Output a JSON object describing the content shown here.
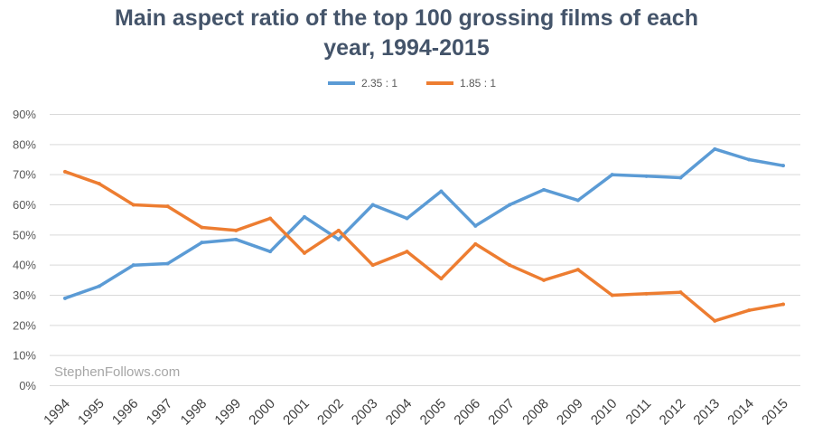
{
  "chart_data": {
    "type": "line",
    "title": "Main aspect ratio of the top 100 grossing films of each year, 1994-2015",
    "title_lines": [
      "Main aspect ratio of the top 100 grossing films of each",
      "year, 1994-2015"
    ],
    "xlabel": "",
    "ylabel": "",
    "categories": [
      "1994",
      "1995",
      "1996",
      "1997",
      "1998",
      "1999",
      "2000",
      "2001",
      "2002",
      "2003",
      "2004",
      "2005",
      "2006",
      "2007",
      "2008",
      "2009",
      "2010",
      "2011",
      "2012",
      "2013",
      "2014",
      "2015"
    ],
    "series": [
      {
        "name": "2.35 : 1",
        "color": "#5b9bd5",
        "values": [
          29,
          33,
          40,
          40.5,
          47.5,
          48.5,
          44.5,
          56,
          48.5,
          60,
          55.5,
          64.5,
          53,
          60,
          65,
          61.5,
          70,
          69.5,
          69,
          78.5,
          75,
          73
        ]
      },
      {
        "name": "1.85 : 1",
        "color": "#ed7d31",
        "values": [
          71,
          67,
          60,
          59.5,
          52.5,
          51.5,
          55.5,
          44,
          51.5,
          40,
          44.5,
          35.5,
          47,
          40,
          35,
          38.5,
          30,
          30.5,
          31,
          21.5,
          25,
          27
        ]
      }
    ],
    "ylim": [
      0,
      90
    ],
    "yticks": [
      0,
      10,
      20,
      30,
      40,
      50,
      60,
      70,
      80,
      90
    ],
    "ytick_labels": [
      "0%",
      "10%",
      "20%",
      "30%",
      "40%",
      "50%",
      "60%",
      "70%",
      "80%",
      "90%"
    ],
    "grid": true,
    "legend_position": "top-center",
    "annotations": [
      "StephenFollows.com"
    ],
    "gridline_color": "#d9d9d9"
  }
}
